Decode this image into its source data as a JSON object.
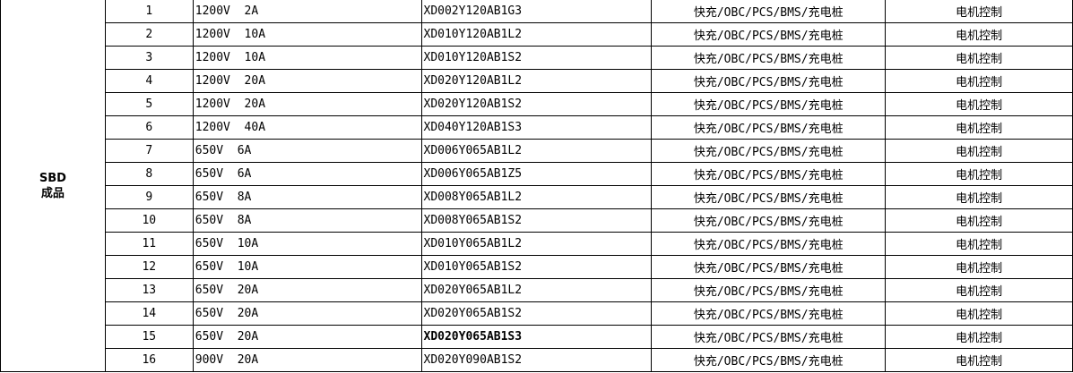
{
  "category": {
    "line1": "SBD",
    "line2": "成品"
  },
  "rows": [
    {
      "no": "1",
      "spec": "1200V  2A",
      "part": "XD002Y120AB1G3",
      "app": "快充/OBC/PCS/BMS/充电桩",
      "use": "电机控制",
      "bold": false
    },
    {
      "no": "2",
      "spec": "1200V  10A",
      "part": "XD010Y120AB1L2",
      "app": "快充/OBC/PCS/BMS/充电桩",
      "use": "电机控制",
      "bold": false
    },
    {
      "no": "3",
      "spec": "1200V  10A",
      "part": "XD010Y120AB1S2",
      "app": "快充/OBC/PCS/BMS/充电桩",
      "use": "电机控制",
      "bold": false
    },
    {
      "no": "4",
      "spec": "1200V  20A",
      "part": "XD020Y120AB1L2",
      "app": "快充/OBC/PCS/BMS/充电桩",
      "use": "电机控制",
      "bold": false
    },
    {
      "no": "5",
      "spec": "1200V  20A",
      "part": "XD020Y120AB1S2",
      "app": "快充/OBC/PCS/BMS/充电桩",
      "use": "电机控制",
      "bold": false
    },
    {
      "no": "6",
      "spec": "1200V  40A",
      "part": "XD040Y120AB1S3",
      "app": "快充/OBC/PCS/BMS/充电桩",
      "use": "电机控制",
      "bold": false
    },
    {
      "no": "7",
      "spec": "650V  6A",
      "part": "XD006Y065AB1L2",
      "app": "快充/OBC/PCS/BMS/充电桩",
      "use": "电机控制",
      "bold": false
    },
    {
      "no": "8",
      "spec": "650V  6A",
      "part": "XD006Y065AB1Z5",
      "app": "快充/OBC/PCS/BMS/充电桩",
      "use": "电机控制",
      "bold": false
    },
    {
      "no": "9",
      "spec": "650V  8A",
      "part": "XD008Y065AB1L2",
      "app": "快充/OBC/PCS/BMS/充电桩",
      "use": "电机控制",
      "bold": false
    },
    {
      "no": "10",
      "spec": "650V  8A",
      "part": "XD008Y065AB1S2",
      "app": "快充/OBC/PCS/BMS/充电桩",
      "use": "电机控制",
      "bold": false
    },
    {
      "no": "11",
      "spec": "650V  10A",
      "part": "XD010Y065AB1L2",
      "app": "快充/OBC/PCS/BMS/充电桩",
      "use": "电机控制",
      "bold": false
    },
    {
      "no": "12",
      "spec": "650V  10A",
      "part": "XD010Y065AB1S2",
      "app": "快充/OBC/PCS/BMS/充电桩",
      "use": "电机控制",
      "bold": false
    },
    {
      "no": "13",
      "spec": "650V  20A",
      "part": "XD020Y065AB1L2",
      "app": "快充/OBC/PCS/BMS/充电桩",
      "use": "电机控制",
      "bold": false
    },
    {
      "no": "14",
      "spec": "650V  20A",
      "part": "XD020Y065AB1S2",
      "app": "快充/OBC/PCS/BMS/充电桩",
      "use": "电机控制",
      "bold": false
    },
    {
      "no": "15",
      "spec": "650V  20A",
      "part": "XD020Y065AB1S3",
      "app": "快充/OBC/PCS/BMS/充电桩",
      "use": "电机控制",
      "bold": true
    },
    {
      "no": "16",
      "spec": "900V  20A",
      "part": "XD020Y090AB1S2",
      "app": "快充/OBC/PCS/BMS/充电桩",
      "use": "电机控制",
      "bold": false
    }
  ]
}
